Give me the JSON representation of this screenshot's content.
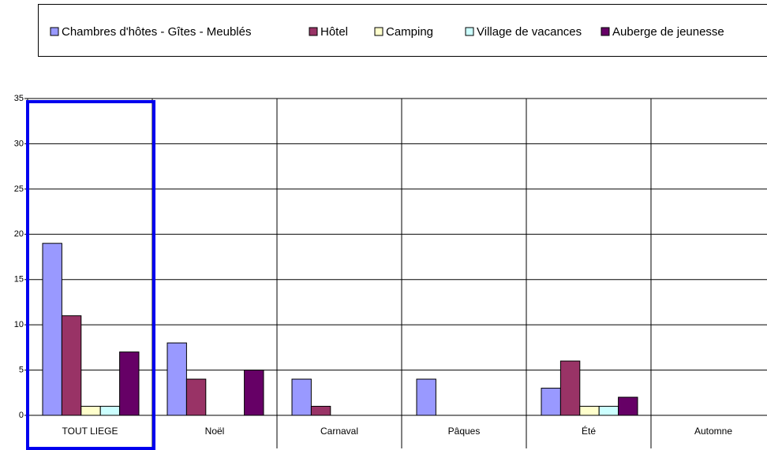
{
  "chart_data": {
    "type": "bar",
    "categories": [
      "TOUT LIEGE",
      "Noël",
      "Carnaval",
      "Pâques",
      "Été",
      "Automne"
    ],
    "series": [
      {
        "name": "Chambres d'hôtes - Gîtes - Meublés",
        "color": "#9999ff",
        "values": [
          19,
          8,
          4,
          4,
          3,
          0
        ]
      },
      {
        "name": "Hôtel",
        "color": "#993366",
        "values": [
          11,
          4,
          1,
          0,
          6,
          0
        ]
      },
      {
        "name": "Camping",
        "color": "#ffffcc",
        "values": [
          1,
          0,
          0,
          0,
          1,
          0
        ]
      },
      {
        "name": "Village de vacances",
        "color": "#ccffff",
        "values": [
          1,
          0,
          0,
          0,
          1,
          0
        ]
      },
      {
        "name": "Auberge de jeunesse",
        "color": "#660066",
        "values": [
          7,
          5,
          0,
          0,
          2,
          0
        ]
      }
    ],
    "ylim": [
      0,
      35
    ],
    "yticks": [
      0,
      5,
      10,
      15,
      20,
      25,
      30,
      35
    ],
    "grid": true,
    "legend": "top"
  }
}
